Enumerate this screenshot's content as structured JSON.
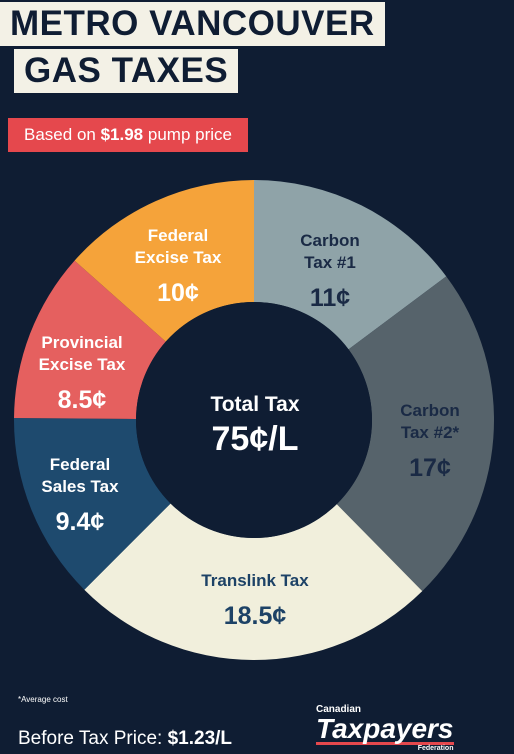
{
  "chart_data": {
    "type": "donut",
    "title_lines": [
      "METRO VANCOUVER",
      "GAS TAXES"
    ],
    "subtitle": {
      "prefix": "Based on",
      "price": "$1.98",
      "suffix": "pump price"
    },
    "categories": [
      "Carbon Tax #1",
      "Carbon Tax #2*",
      "Translink Tax",
      "Federal Sales Tax",
      "Provincial Excise Tax",
      "Federal Excise Tax"
    ],
    "values": [
      11,
      17,
      18.5,
      9.4,
      8.5,
      10
    ],
    "value_labels": [
      "11¢",
      "17¢",
      "18.5¢",
      "9.4¢",
      "8.5¢",
      "10¢"
    ],
    "colors": [
      "#8fa3a8",
      "#56636b",
      "#f1efdc",
      "#1e4a6e",
      "#e5605f",
      "#f5a33a"
    ],
    "center_label": "Total Tax",
    "center_value": "75¢/L",
    "footnote": "*Average cost",
    "before_tax": {
      "label": "Before Tax Price:",
      "value": "$1.23/L"
    },
    "logo": {
      "top": "Canadian",
      "main": "Taxpayers",
      "bottom": "Federation"
    }
  }
}
